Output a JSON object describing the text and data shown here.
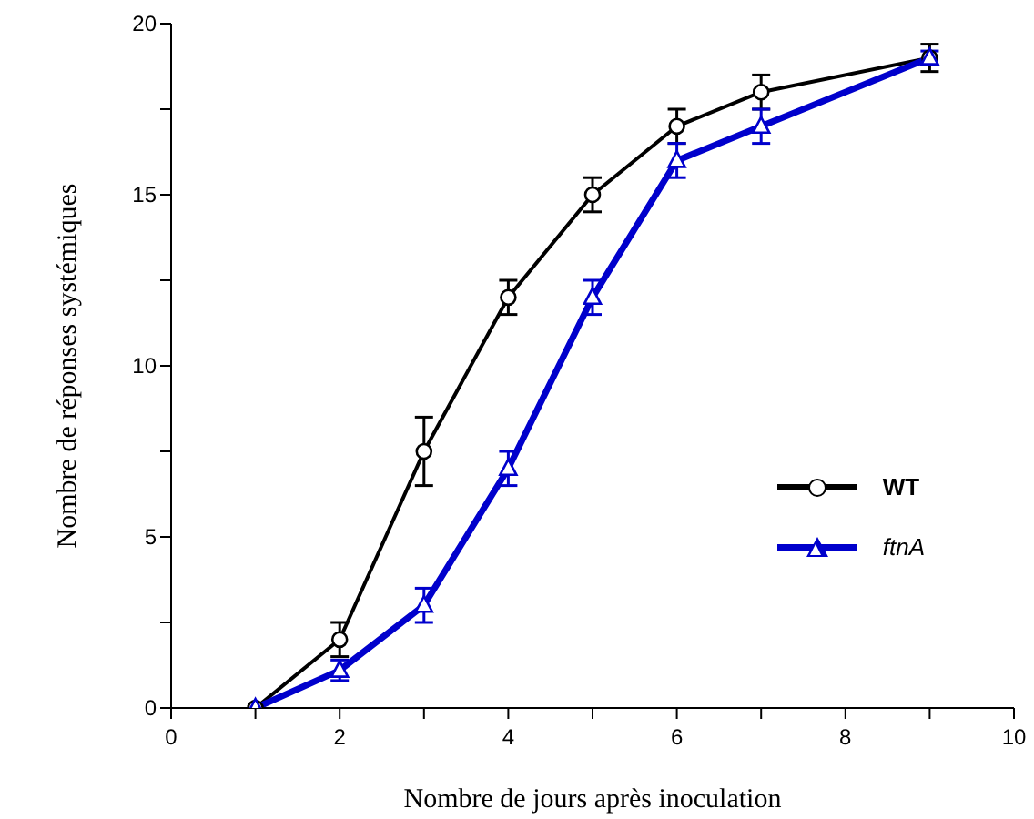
{
  "chart_data": {
    "type": "line",
    "xlabel": "Nombre de jours après inoculation",
    "ylabel": "Nombre de réponses systémiques",
    "xlim": [
      0,
      10
    ],
    "xticks": [
      0,
      {
        "value": 1,
        "label": null
      },
      2,
      {
        "value": 3,
        "label": null
      },
      4,
      {
        "value": 5,
        "label": null
      },
      6,
      {
        "value": 7,
        "label": null
      },
      8,
      {
        "value": 9,
        "label": null
      },
      10
    ],
    "ylim": [
      0,
      20
    ],
    "yticks": [
      0,
      {
        "value": 2.5,
        "label": null
      },
      5,
      {
        "value": 7.5,
        "label": null
      },
      10,
      {
        "value": 12.5,
        "label": null
      },
      15,
      {
        "value": 17.5,
        "label": null
      },
      20
    ],
    "x": [
      1,
      2,
      3,
      4,
      5,
      6,
      7,
      9
    ],
    "series": [
      {
        "name": "WT",
        "color": "#000000",
        "marker": "circle",
        "values": [
          0,
          2,
          7.5,
          12,
          15,
          17,
          18,
          19
        ],
        "errors": [
          null,
          0.5,
          1,
          0.5,
          0.5,
          0.5,
          0.5,
          0.4
        ]
      },
      {
        "name": "ftnA",
        "color": "#0000cc",
        "marker": "triangle",
        "values": [
          0,
          1.1,
          3,
          7,
          12,
          16,
          17,
          19
        ],
        "errors": [
          null,
          0.3,
          0.5,
          0.5,
          0.5,
          0.5,
          0.5,
          0.2
        ]
      }
    ],
    "grid": false,
    "legend": "right"
  }
}
